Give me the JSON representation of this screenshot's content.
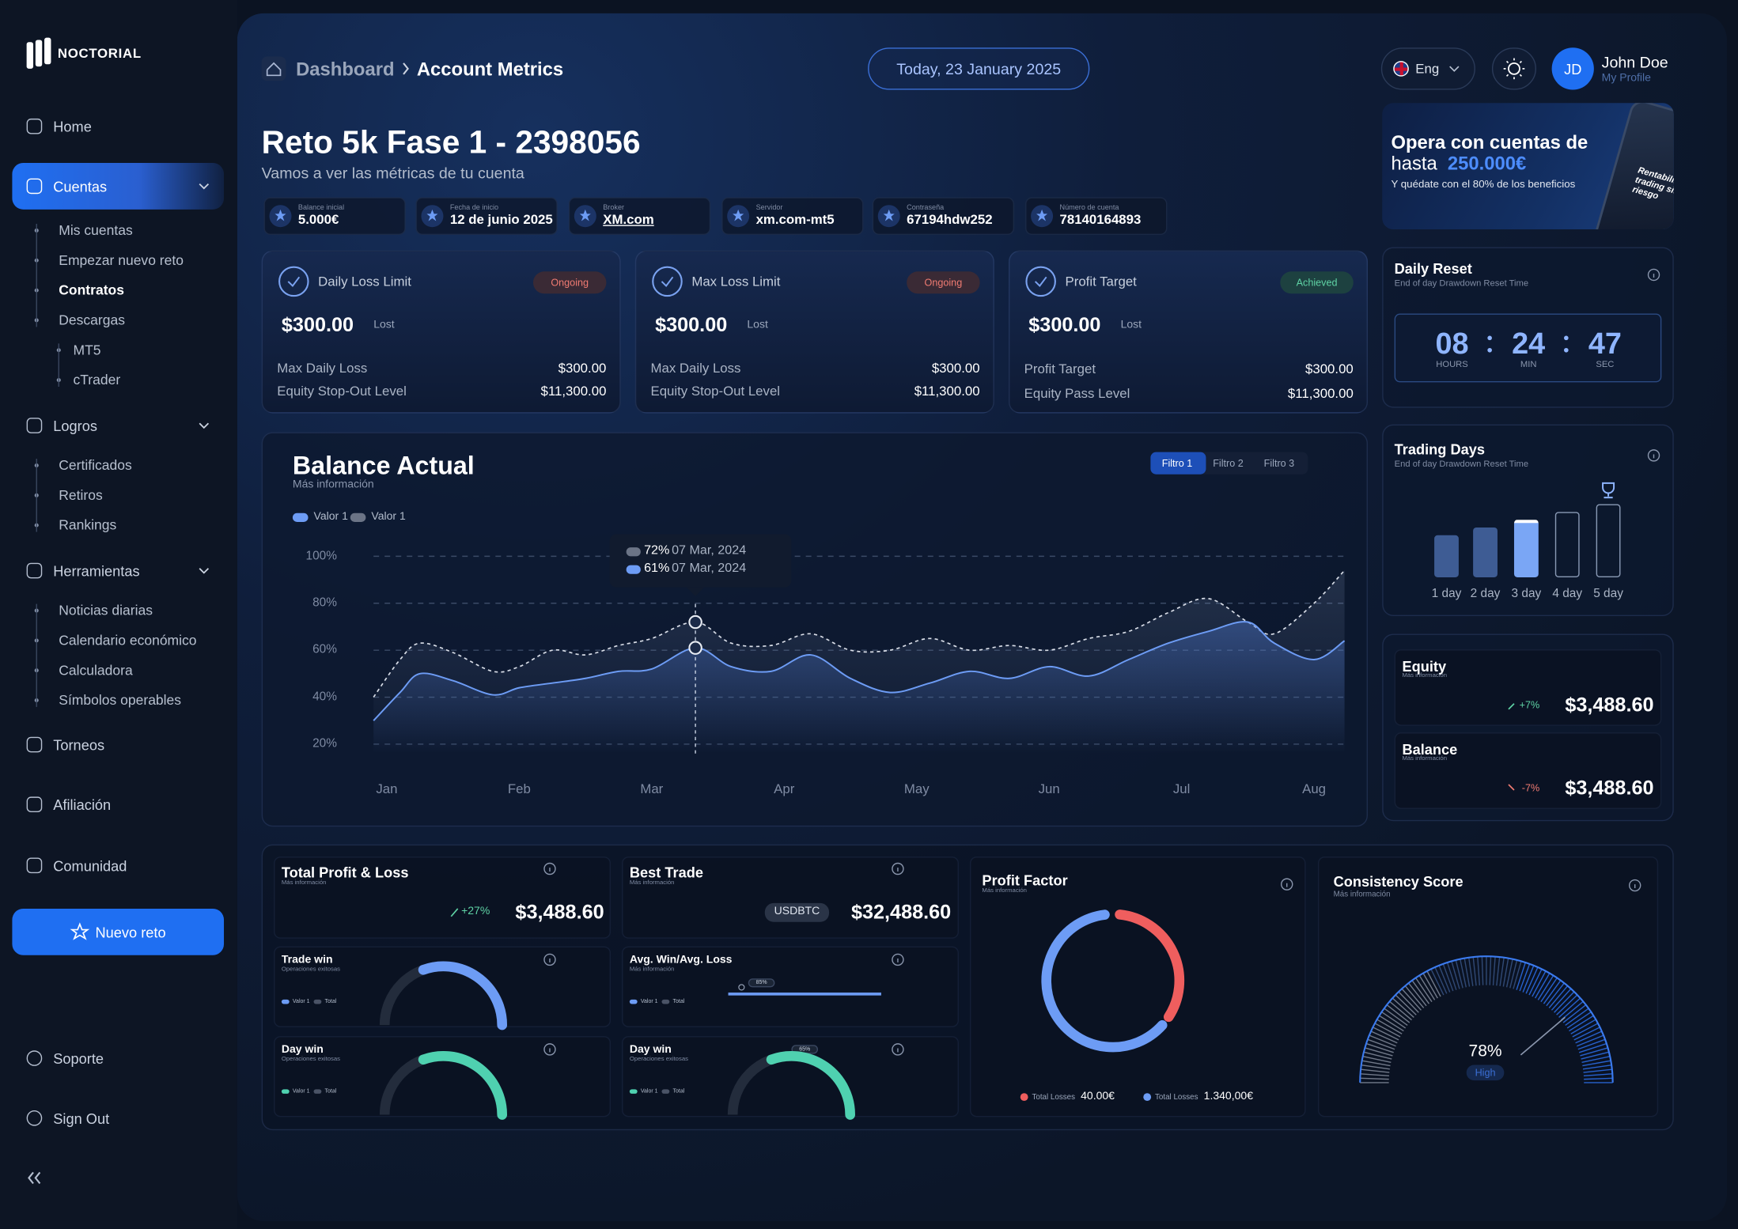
{
  "sidebar": {
    "brand": "NOCTORIAL",
    "nav": [
      {
        "label": "Home"
      },
      {
        "label": "Cuentas",
        "children": [
          "Mis cuentas",
          "Empezar nuevo reto",
          "Contratos",
          "Descargas",
          "MT5",
          "cTrader"
        ]
      },
      {
        "label": "Logros",
        "children": [
          "Certificados",
          "Retiros",
          "Rankings"
        ]
      },
      {
        "label": "Herramientas",
        "children": [
          "Noticias diarias",
          "Calendario económico",
          "Calculadora",
          "Símbolos operables"
        ]
      },
      {
        "label": "Torneos"
      },
      {
        "label": "Afiliación"
      },
      {
        "label": "Comunidad"
      }
    ],
    "cta": "Nuevo reto",
    "footer": [
      "Soporte",
      "Sign Out"
    ]
  },
  "header": {
    "breadcrumb": [
      "Dashboard",
      "Account Metrics"
    ],
    "date": "Today, 23 January 2025",
    "language": "Eng",
    "user": {
      "initials": "JD",
      "name": "John Doe",
      "link": "My Profile"
    }
  },
  "account": {
    "title": "Reto 5k Fase 1 - 2398056",
    "subtitle": "Vamos a ver las métricas de tu cuenta",
    "details": [
      {
        "label": "Balance inicial",
        "value": "5.000€"
      },
      {
        "label": "Fecha de inicio",
        "value": "12 de junio 2025"
      },
      {
        "label": "Broker",
        "value": "XM.com"
      },
      {
        "label": "Servidor",
        "value": "xm.com-mt5"
      },
      {
        "label": "Contraseña",
        "value": "67194hdw252"
      },
      {
        "label": "Número de cuenta",
        "value": "78140164893"
      }
    ]
  },
  "limits": [
    {
      "title": "Daily Loss Limit",
      "status": "Ongoing",
      "amount": "$300.00",
      "note": "Lost",
      "rows": [
        [
          "Max Daily Loss",
          "$300.00"
        ],
        [
          "Equity Stop-Out Level",
          "$11,300.00"
        ]
      ]
    },
    {
      "title": "Max Loss Limit",
      "status": "Ongoing",
      "amount": "$300.00",
      "note": "Lost",
      "rows": [
        [
          "Max Daily Loss",
          "$300.00"
        ],
        [
          "Equity Stop-Out Level",
          "$11,300.00"
        ]
      ]
    },
    {
      "title": "Profit Target",
      "status": "Achieved",
      "amount": "$300.00",
      "note": "Lost",
      "rows": [
        [
          "Profit Target",
          "$300.00"
        ],
        [
          "Equity Pass Level",
          "$11,300.00"
        ]
      ]
    }
  ],
  "balance_chart": {
    "type": "line",
    "title": "Balance Actual",
    "subtitle": "Más información",
    "filters": [
      "Filtro 1",
      "Filtro 2",
      "Filtro 3"
    ],
    "x": [
      -0.1,
      0.1,
      0.25,
      0.5,
      0.8,
      1.0,
      1.25,
      1.5,
      1.75,
      2.0,
      2.33,
      2.6,
      2.9,
      3.2,
      3.5,
      3.8,
      4.1,
      4.4,
      4.7,
      5.0,
      5.3,
      5.6,
      5.9,
      6.2,
      6.5,
      6.7,
      7.0,
      7.23
    ],
    "xlim": [
      -0.1,
      7.23
    ],
    "xticks": [
      {
        "value": 0,
        "label": "Jan"
      },
      {
        "value": 1,
        "label": "Feb"
      },
      {
        "value": 2,
        "label": "Mar"
      },
      {
        "value": 3,
        "label": "Apr"
      },
      {
        "value": 4,
        "label": "May"
      },
      {
        "value": 5,
        "label": "Jun"
      },
      {
        "value": 6,
        "label": "Jul"
      },
      {
        "value": 7,
        "label": "Aug"
      }
    ],
    "ylim": [
      16,
      100
    ],
    "yticks": [
      {
        "value": 20,
        "label": "20%"
      },
      {
        "value": 40,
        "label": "40%"
      },
      {
        "value": 60,
        "label": "60%"
      },
      {
        "value": 80,
        "label": "80%"
      },
      {
        "value": 100,
        "label": "100%"
      }
    ],
    "grid": true,
    "series": [
      {
        "name": "Valor 1",
        "color": "#6d9cf5",
        "style": "solid",
        "values": [
          30,
          42,
          50,
          47,
          41,
          44,
          46,
          48,
          51,
          52,
          61,
          53,
          51,
          58,
          48,
          42,
          46,
          51,
          48,
          53,
          49,
          56,
          63,
          68,
          72,
          63,
          56,
          64
        ]
      },
      {
        "name": "Valor 1",
        "color": "#d9dee8",
        "style": "dashed",
        "values": [
          40,
          56,
          63,
          59,
          51,
          53,
          60,
          58,
          62,
          65,
          72,
          63,
          62,
          67,
          60,
          60,
          65,
          60,
          62,
          60,
          65,
          68,
          76,
          82,
          72,
          67,
          80,
          94
        ]
      }
    ],
    "tooltip": {
      "x": 2.33,
      "entries": [
        {
          "value": "72%",
          "date": "07 Mar, 2024"
        },
        {
          "value": "61%",
          "date": "07 Mar, 2024"
        }
      ]
    }
  },
  "promo": {
    "title": "Opera con cuentas de",
    "title2": "hasta",
    "highlight": "250.000€",
    "text": "Y quédate con el 80% de los beneficios",
    "phone_text": "Rentabiliza trading sin riesgo"
  },
  "daily_reset": {
    "title": "Daily Reset",
    "subtitle": "End of day Drawdown Reset Time",
    "timer": [
      {
        "value": "08",
        "unit": "HOURS"
      },
      {
        "value": "24",
        "unit": "MIN"
      },
      {
        "value": "47",
        "unit": "SEC"
      }
    ]
  },
  "trading_days": {
    "title": "Trading Days",
    "subtitle": "End of day Drawdown Reset Time",
    "days": [
      "1 day",
      "2 day",
      "3 day",
      "4 day",
      "5 day"
    ]
  },
  "equity": [
    {
      "title": "Equity",
      "subtitle": "Más información",
      "change": "+7%",
      "value": "$3,488.60"
    },
    {
      "title": "Balance",
      "subtitle": "Más información",
      "change": "-7%",
      "value": "$3,488.60"
    }
  ],
  "performance": {
    "total_pl": {
      "title": "Total Profit & Loss",
      "subtitle": "Más información",
      "change": "+27%",
      "value": "$3,488.60"
    },
    "best_trade": {
      "title": "Best Trade",
      "subtitle": "Más información",
      "symbol": "USDBTC",
      "value": "$32,488.60"
    },
    "trade_win": {
      "title": "Trade win",
      "subtitle": "Operaciones exitosas",
      "legend": [
        "Valor 1",
        "Total"
      ]
    },
    "avg_win_loss": {
      "title": "Avg. Win/Avg. Loss",
      "subtitle": "Más información",
      "legend": [
        "Valor 1",
        "Total"
      ],
      "marker": "85%"
    },
    "day_win": {
      "title": "Day win",
      "subtitle": "Operaciones exitosas",
      "legend": [
        "Valor 1",
        "Total"
      ]
    },
    "day_win_2": {
      "title": "Day win",
      "subtitle": "Operaciones exitosas",
      "legend": [
        "Valor 1",
        "Total"
      ],
      "marker": "65%"
    },
    "profit_factor": {
      "title": "Profit Factor",
      "subtitle": "Más información",
      "legend": [
        {
          "label": "Total Losses",
          "value": "40.00€"
        },
        {
          "label": "Total Losses",
          "value": "1.340,00€"
        }
      ]
    },
    "consistency": {
      "title": "Consistency Score",
      "subtitle": "Más información",
      "score": "78%",
      "level": "High"
    }
  }
}
